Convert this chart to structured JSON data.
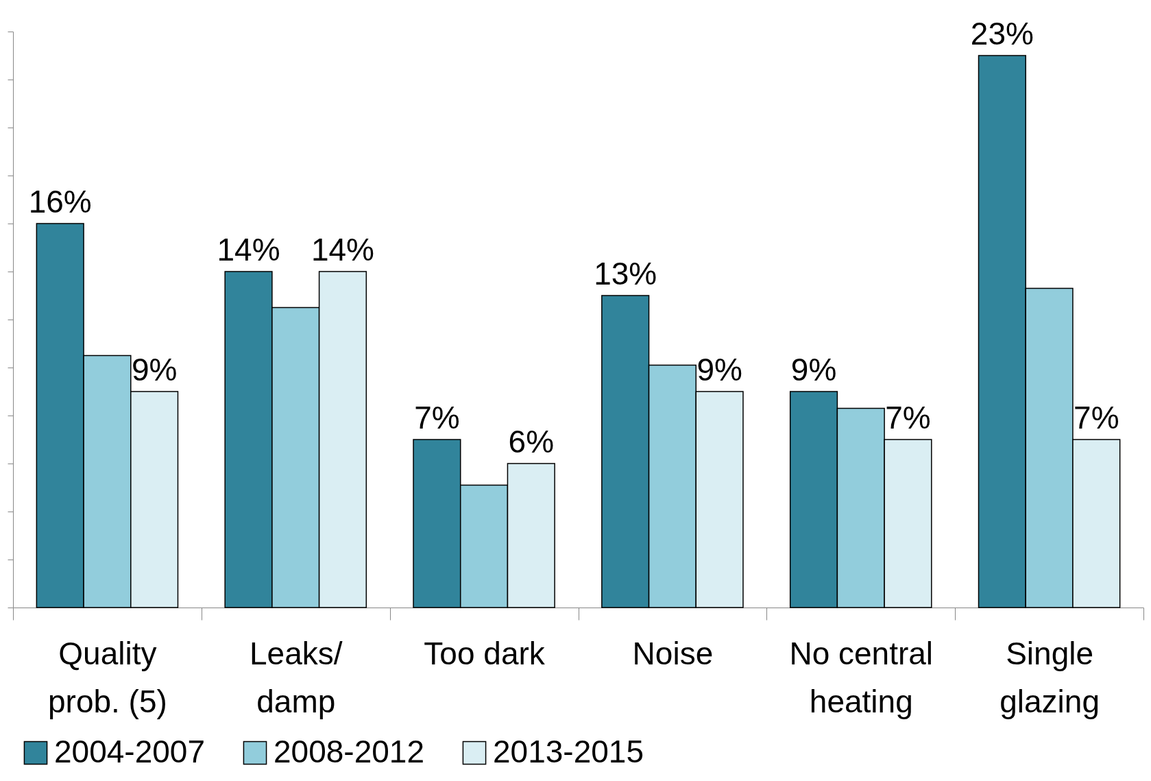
{
  "chart_data": {
    "type": "bar",
    "categories": [
      "Quality prob. (5)",
      "Leaks/ damp",
      "Too dark",
      "Noise",
      "No central heating",
      "Single glazing"
    ],
    "series": [
      {
        "name": "2004-2007",
        "color": "#31849b",
        "values": [
          16,
          14,
          7,
          13,
          9,
          23
        ],
        "value_labels": [
          "16%",
          "14%",
          "7%",
          "13%",
          "9%",
          "23%"
        ]
      },
      {
        "name": "2008-2012",
        "color": "#92cddc",
        "values": [
          10.5,
          12.5,
          5.1,
          10.1,
          8.3,
          13.3
        ],
        "value_labels": [
          null,
          null,
          null,
          null,
          null,
          null
        ]
      },
      {
        "name": "2013-2015",
        "color": "#daeef3",
        "values": [
          9,
          14,
          6,
          9,
          7,
          7
        ],
        "value_labels": [
          "9%",
          "14%",
          "6%",
          "9%",
          "7%",
          "7%"
        ]
      }
    ],
    "ylim": [
      0,
      24
    ],
    "yticks": [
      {
        "value": 0,
        "label": null
      },
      {
        "value": 2,
        "label": null
      },
      {
        "value": 4,
        "label": null
      },
      {
        "value": 6,
        "label": null
      },
      {
        "value": 8,
        "label": null
      },
      {
        "value": 10,
        "label": null
      },
      {
        "value": 12,
        "label": null
      },
      {
        "value": 14,
        "label": null
      },
      {
        "value": 16,
        "label": null
      },
      {
        "value": 18,
        "label": null
      },
      {
        "value": 20,
        "label": null
      },
      {
        "value": 22,
        "label": null
      },
      {
        "value": 24,
        "label": null
      }
    ],
    "tick_labels": "x",
    "grid": false,
    "legend": "bottom"
  }
}
